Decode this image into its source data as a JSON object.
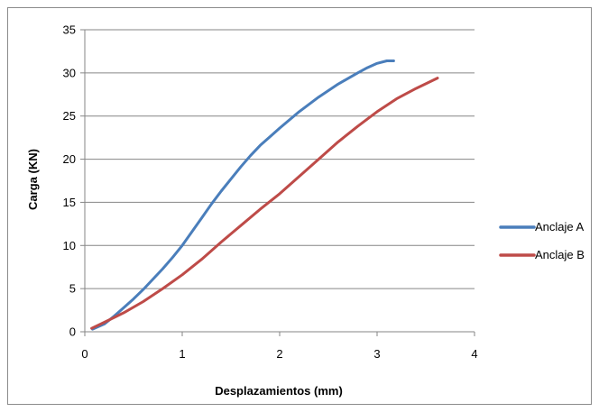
{
  "chart_data": {
    "type": "line",
    "title": "",
    "xlabel": "Desplazamientos (mm)",
    "ylabel": "Carga (KN)",
    "xlim": [
      0,
      4
    ],
    "ylim": [
      0,
      35
    ],
    "xticks": [
      "0",
      "1",
      "2",
      "3",
      "4"
    ],
    "yticks": [
      "0",
      "5",
      "10",
      "15",
      "20",
      "25",
      "30",
      "35"
    ],
    "grid": "horizontal",
    "legend_position": "right",
    "series": [
      {
        "name": "Anclaje A",
        "color": "#4a7ebb",
        "points": [
          [
            0.08,
            0.3
          ],
          [
            0.2,
            0.9
          ],
          [
            0.3,
            1.8
          ],
          [
            0.4,
            2.8
          ],
          [
            0.5,
            3.8
          ],
          [
            0.6,
            4.9
          ],
          [
            0.7,
            6.1
          ],
          [
            0.8,
            7.3
          ],
          [
            0.9,
            8.6
          ],
          [
            1.0,
            10.0
          ],
          [
            1.1,
            11.6
          ],
          [
            1.2,
            13.2
          ],
          [
            1.3,
            14.8
          ],
          [
            1.4,
            16.3
          ],
          [
            1.5,
            17.7
          ],
          [
            1.6,
            19.1
          ],
          [
            1.7,
            20.4
          ],
          [
            1.8,
            21.6
          ],
          [
            1.9,
            22.6
          ],
          [
            2.0,
            23.6
          ],
          [
            2.2,
            25.5
          ],
          [
            2.4,
            27.2
          ],
          [
            2.6,
            28.7
          ],
          [
            2.8,
            30.0
          ],
          [
            2.9,
            30.6
          ],
          [
            3.0,
            31.1
          ],
          [
            3.1,
            31.4
          ],
          [
            3.17,
            31.4
          ]
        ]
      },
      {
        "name": "Anclaje B",
        "color": "#be4b48",
        "points": [
          [
            0.07,
            0.4
          ],
          [
            0.2,
            1.1
          ],
          [
            0.4,
            2.2
          ],
          [
            0.6,
            3.5
          ],
          [
            0.8,
            5.0
          ],
          [
            1.0,
            6.6
          ],
          [
            1.2,
            8.4
          ],
          [
            1.4,
            10.4
          ],
          [
            1.6,
            12.3
          ],
          [
            1.8,
            14.2
          ],
          [
            2.0,
            16.0
          ],
          [
            2.2,
            18.0
          ],
          [
            2.4,
            20.0
          ],
          [
            2.6,
            22.0
          ],
          [
            2.8,
            23.8
          ],
          [
            3.0,
            25.5
          ],
          [
            3.2,
            27.0
          ],
          [
            3.4,
            28.2
          ],
          [
            3.62,
            29.4
          ]
        ]
      }
    ]
  }
}
